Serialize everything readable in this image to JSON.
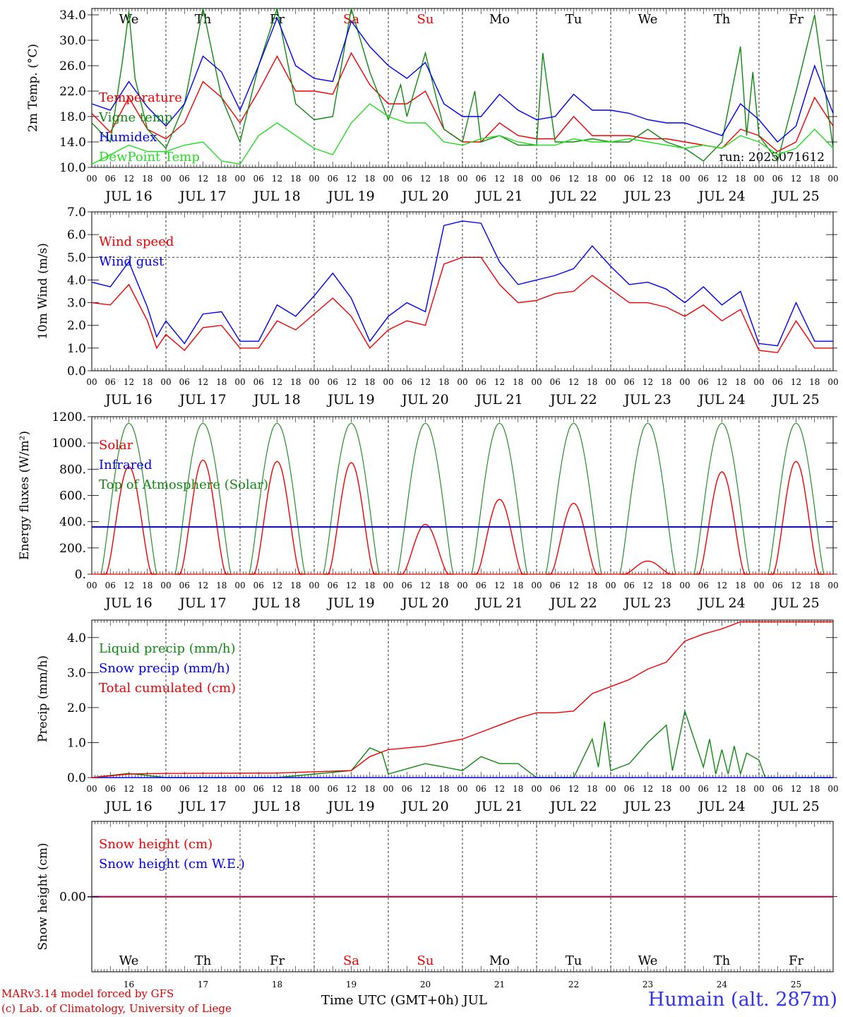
{
  "colors": {
    "red": "#ee0000",
    "green": "#118811",
    "blue": "#0000ee",
    "lightgreen": "#22dd22",
    "title_blue": "#3333ee",
    "sat_sun": "#ee0000"
  },
  "footer": {
    "model_line": "MARv3.14 model forced by GFS",
    "copyright_line": "(c) Lab. of Climatology, University of Liege",
    "xaxis_title": "Time UTC (GMT+0h) JUL",
    "station": "Humain (alt. 287m)"
  },
  "run_label": "run: 2025071612",
  "days": [
    {
      "weekday": "We",
      "date_label": "JUL 16",
      "day_num": "16",
      "weekend": false
    },
    {
      "weekday": "Th",
      "date_label": "JUL 17",
      "day_num": "17",
      "weekend": false
    },
    {
      "weekday": "Fr",
      "date_label": "JUL 18",
      "day_num": "18",
      "weekend": false
    },
    {
      "weekday": "Sa",
      "date_label": "JUL 19",
      "day_num": "19",
      "weekend": true
    },
    {
      "weekday": "Su",
      "date_label": "JUL 20",
      "day_num": "20",
      "weekend": true
    },
    {
      "weekday": "Mo",
      "date_label": "JUL 21",
      "day_num": "21",
      "weekend": false
    },
    {
      "weekday": "Tu",
      "date_label": "JUL 22",
      "day_num": "22",
      "weekend": false
    },
    {
      "weekday": "We",
      "date_label": "JUL 23",
      "day_num": "23",
      "weekend": false
    },
    {
      "weekday": "Th",
      "date_label": "JUL 24",
      "day_num": "24",
      "weekend": false
    },
    {
      "weekday": "Fr",
      "date_label": "JUL 25",
      "day_num": "25",
      "weekend": false
    }
  ],
  "hour_ticks": [
    "00",
    "06",
    "12",
    "18"
  ],
  "end_hour_tick": "00",
  "chart_data": [
    {
      "type": "line",
      "ylabel": "2m Temp. (°C)",
      "ylim": [
        10,
        35
      ],
      "yticks": [
        "10.0",
        "14.0",
        "18.0",
        "22.0",
        "26.0",
        "30.0",
        "34.0"
      ],
      "ytick_values": [
        10,
        14,
        18,
        22,
        26,
        30,
        34
      ],
      "x_unit": "hours since JUL 16 00 UTC",
      "series": [
        {
          "name": "Temperature",
          "color_key": "red",
          "x": [
            0,
            6,
            12,
            18,
            24,
            30,
            36,
            42,
            48,
            54,
            60,
            66,
            72,
            78,
            84,
            90,
            96,
            102,
            108,
            114,
            120,
            126,
            132,
            138,
            144,
            150,
            156,
            162,
            168,
            174,
            180,
            186,
            192,
            198,
            204,
            210,
            216,
            222,
            228,
            234,
            240
          ],
          "values": [
            18.5,
            15.5,
            21,
            16,
            14.5,
            17,
            23.5,
            21,
            17,
            22,
            27.5,
            22,
            22,
            21.5,
            28,
            23,
            20,
            20,
            22,
            16,
            14,
            14,
            17,
            15,
            14.5,
            14.5,
            18,
            15,
            15,
            15,
            14.5,
            14.5,
            14,
            13.5,
            13,
            16,
            15,
            12.5,
            14,
            21,
            16.5
          ]
        },
        {
          "name": "Vigne temp",
          "color_key": "green",
          "x": [
            0,
            6,
            10,
            12,
            14,
            18,
            24,
            30,
            36,
            42,
            48,
            54,
            60,
            66,
            72,
            78,
            84,
            90,
            96,
            100,
            102,
            108,
            114,
            120,
            124,
            126,
            132,
            138,
            144,
            146,
            150,
            156,
            162,
            168,
            174,
            180,
            186,
            192,
            198,
            204,
            210,
            212,
            214,
            216,
            222,
            228,
            234,
            240
          ],
          "values": [
            17,
            14,
            27,
            34.5,
            24,
            16,
            13,
            20,
            35,
            21,
            14,
            26,
            35,
            20,
            17.5,
            18,
            35,
            25,
            17.5,
            23,
            18,
            28,
            16,
            14,
            22,
            14,
            15,
            13.5,
            13.5,
            28,
            14,
            14,
            14.5,
            14,
            14,
            16,
            14,
            13,
            11,
            14,
            29,
            15,
            25,
            15,
            11,
            22,
            34,
            13
          ]
        },
        {
          "name": "Humidex",
          "color_key": "blue",
          "x": [
            0,
            6,
            12,
            18,
            24,
            30,
            36,
            42,
            48,
            54,
            60,
            66,
            72,
            78,
            84,
            90,
            96,
            102,
            108,
            114,
            120,
            126,
            132,
            138,
            144,
            150,
            156,
            162,
            168,
            174,
            180,
            186,
            192,
            198,
            204,
            210,
            216,
            222,
            228,
            234,
            240
          ],
          "values": [
            20,
            19,
            23.5,
            19.5,
            16.5,
            20,
            27.5,
            25,
            19,
            26,
            33.5,
            26,
            24,
            23.5,
            33,
            29,
            26,
            24,
            26.5,
            20,
            18,
            18,
            21.5,
            19,
            17.5,
            18,
            21.5,
            19,
            19,
            18.5,
            17.5,
            17,
            17,
            16,
            15,
            20,
            17.5,
            14,
            16.5,
            26,
            18.5
          ]
        },
        {
          "name": "DewPoint Temp",
          "color_key": "lightgreen",
          "x": [
            0,
            6,
            12,
            18,
            24,
            30,
            36,
            42,
            48,
            54,
            60,
            66,
            72,
            78,
            84,
            90,
            96,
            102,
            108,
            114,
            120,
            126,
            132,
            138,
            144,
            150,
            156,
            162,
            168,
            174,
            180,
            186,
            192,
            198,
            204,
            210,
            216,
            222,
            228,
            234,
            240
          ],
          "values": [
            10.5,
            12,
            13.5,
            12.5,
            12.5,
            13.5,
            14,
            11,
            10.5,
            15,
            17,
            15,
            13,
            12,
            17,
            20,
            18,
            17,
            17,
            14,
            13.5,
            14.5,
            15,
            14,
            13.5,
            13.5,
            14.5,
            14,
            14,
            14.5,
            14,
            13.5,
            13,
            13.5,
            13,
            15,
            14,
            12,
            13,
            16,
            13
          ]
        }
      ],
      "legend": [
        "Temperature",
        "Vigne temp",
        "Humidex",
        "DewPoint Temp"
      ],
      "legend_position": "left"
    },
    {
      "type": "line",
      "ylabel": "10m Wind (m/s)",
      "ylim": [
        0,
        7
      ],
      "yticks": [
        "0.0",
        "1.0",
        "2.0",
        "3.0",
        "4.0",
        "5.0",
        "6.0",
        "7.0"
      ],
      "ytick_values": [
        0,
        1,
        2,
        3,
        4,
        5,
        6,
        7
      ],
      "reference_line": 5,
      "series": [
        {
          "name": "Wind speed",
          "color_key": "red",
          "x": [
            0,
            6,
            12,
            18,
            21,
            24,
            30,
            36,
            42,
            48,
            54,
            60,
            66,
            72,
            78,
            84,
            90,
            96,
            102,
            108,
            114,
            120,
            126,
            132,
            138,
            144,
            150,
            156,
            162,
            168,
            174,
            180,
            186,
            192,
            198,
            204,
            210,
            216,
            222,
            228,
            234,
            240
          ],
          "values": [
            3.0,
            2.9,
            3.8,
            2.2,
            1.0,
            1.6,
            0.9,
            1.9,
            2.0,
            1.0,
            1.0,
            2.2,
            1.8,
            2.5,
            3.2,
            2.4,
            1.0,
            1.8,
            2.2,
            2.0,
            4.7,
            5.0,
            5.0,
            3.8,
            3.0,
            3.1,
            3.4,
            3.5,
            4.2,
            3.6,
            3.0,
            3.0,
            2.8,
            2.4,
            2.9,
            2.2,
            2.7,
            0.9,
            0.8,
            2.2,
            1.0,
            1.0
          ]
        },
        {
          "name": "Wind gust",
          "color_key": "blue",
          "x": [
            0,
            6,
            12,
            18,
            21,
            24,
            30,
            36,
            42,
            48,
            54,
            60,
            66,
            72,
            78,
            84,
            90,
            96,
            102,
            108,
            114,
            120,
            126,
            132,
            138,
            144,
            150,
            156,
            162,
            168,
            174,
            180,
            186,
            192,
            198,
            204,
            210,
            216,
            222,
            228,
            234,
            240
          ],
          "values": [
            3.9,
            3.7,
            4.8,
            2.8,
            1.5,
            2.2,
            1.2,
            2.5,
            2.6,
            1.3,
            1.3,
            2.9,
            2.4,
            3.3,
            4.3,
            3.2,
            1.3,
            2.4,
            3.0,
            2.6,
            6.4,
            6.6,
            6.5,
            4.8,
            3.8,
            4.0,
            4.2,
            4.5,
            5.5,
            4.6,
            3.8,
            3.9,
            3.6,
            3.0,
            3.7,
            2.9,
            3.5,
            1.2,
            1.1,
            3.0,
            1.3,
            1.3
          ]
        }
      ],
      "legend": [
        "Wind speed",
        "Wind gust"
      ],
      "legend_position": "left"
    },
    {
      "type": "line",
      "ylabel": "Energy fluxes (W/m²)",
      "ylim": [
        0,
        1200
      ],
      "yticks": [
        "0.",
        "200.",
        "400.",
        "600.",
        "800.",
        "1000.",
        "1200."
      ],
      "ytick_values": [
        0,
        200,
        400,
        600,
        800,
        1000,
        1200
      ],
      "solar_peaks": [
        820,
        870,
        860,
        850,
        380,
        570,
        540,
        100,
        780,
        860
      ],
      "toa_peak": 1150,
      "infrared_level": 360,
      "legend": [
        "Solar",
        "Infrared",
        "Top of Atmosphere (Solar)"
      ],
      "legend_position": "left"
    },
    {
      "type": "line",
      "ylabel": "Precip (mm/h)",
      "ylim": [
        0,
        4.5
      ],
      "yticks": [
        "0.0",
        "1.0",
        "2.0",
        "3.0",
        "4.0"
      ],
      "ytick_values": [
        0,
        1,
        2,
        3,
        4
      ],
      "series": [
        {
          "name": "Liquid precip (mm/h)",
          "color_key": "green",
          "x": [
            0,
            12,
            24,
            60,
            66,
            84,
            90,
            94,
            96,
            102,
            108,
            114,
            120,
            126,
            132,
            138,
            144,
            156,
            162,
            164,
            166,
            168,
            174,
            180,
            186,
            188,
            192,
            198,
            200,
            202,
            204,
            206,
            208,
            210,
            212,
            216,
            218,
            222,
            240
          ],
          "values": [
            0,
            0.12,
            0,
            0,
            0.05,
            0.2,
            0.85,
            0.7,
            0.1,
            0.25,
            0.4,
            0.3,
            0.2,
            0.6,
            0.4,
            0.4,
            0,
            0,
            1.1,
            0.3,
            1.6,
            0.2,
            0.4,
            1.0,
            1.5,
            0.2,
            1.9,
            0.3,
            1.1,
            0.1,
            0.8,
            0.1,
            0.9,
            0.1,
            0.7,
            0.5,
            0,
            0,
            0
          ]
        },
        {
          "name": "Snow precip (mm/h)",
          "color_key": "blue",
          "x": [
            0,
            240
          ],
          "values": [
            0,
            0
          ]
        },
        {
          "name": "Total cumulated (cm)",
          "color_key": "red",
          "x": [
            0,
            12,
            24,
            60,
            84,
            90,
            96,
            102,
            108,
            114,
            120,
            126,
            132,
            138,
            144,
            150,
            156,
            162,
            168,
            174,
            180,
            186,
            192,
            198,
            204,
            210,
            216,
            240
          ],
          "values": [
            0,
            0.1,
            0.12,
            0.13,
            0.2,
            0.6,
            0.8,
            0.85,
            0.9,
            1.0,
            1.1,
            1.3,
            1.5,
            1.7,
            1.85,
            1.85,
            1.9,
            2.4,
            2.6,
            2.8,
            3.1,
            3.3,
            3.9,
            4.1,
            4.25,
            4.45,
            4.45,
            4.45
          ]
        }
      ],
      "legend": [
        "Liquid precip (mm/h)",
        "Snow precip (mm/h)",
        "Total cumulated (cm)"
      ],
      "legend_position": "left"
    },
    {
      "type": "line",
      "ylabel": "Snow height (cm)",
      "yticks": [
        "0.00"
      ],
      "ytick_values": [
        0
      ],
      "series": [
        {
          "name": "Snow height (cm)",
          "color_key": "red",
          "x": [
            0,
            240
          ],
          "values": [
            0,
            0
          ]
        },
        {
          "name": "Snow height (cm W.E.)",
          "color_key": "blue",
          "x": [
            0,
            240
          ],
          "values": [
            0,
            0
          ]
        }
      ],
      "legend": [
        "Snow height (cm)",
        "Snow height (cm W.E.)"
      ],
      "legend_position": "left"
    }
  ]
}
